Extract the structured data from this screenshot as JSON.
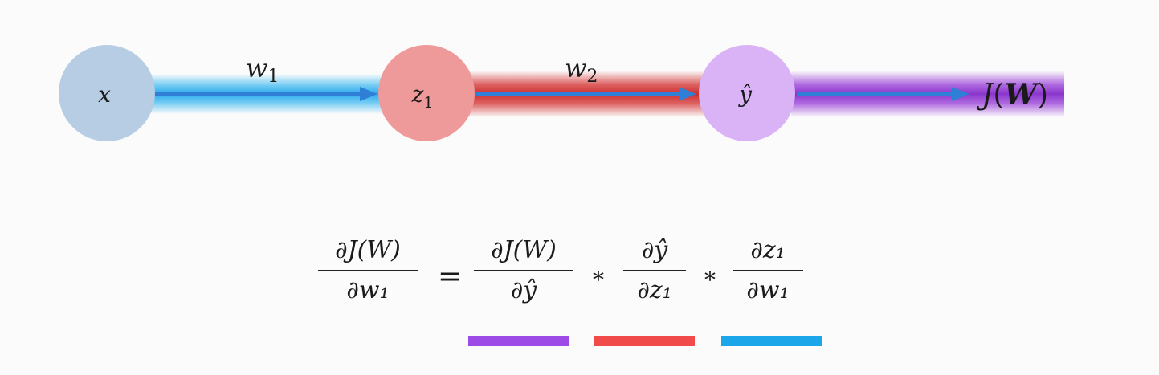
{
  "nodes": {
    "x": {
      "label": "x"
    },
    "z1": {
      "label": "z",
      "sub": "1"
    },
    "yhat": {
      "label": "ŷ"
    }
  },
  "output": {
    "label_prefix": "J",
    "label_arg": "W"
  },
  "edges": {
    "w1": {
      "label": "w",
      "sub": "1"
    },
    "w2": {
      "label": "w",
      "sub": "2"
    }
  },
  "equation": {
    "lhs": {
      "num": "∂J(W)",
      "den": "∂w₁"
    },
    "equals": "=",
    "term1": {
      "num": "∂J(W)",
      "den": "∂ŷ"
    },
    "times1": "*",
    "term2": {
      "num": "∂ŷ",
      "den": "∂z₁"
    },
    "times2": "*",
    "term3": {
      "num": "∂z₁",
      "den": "∂w₁"
    }
  },
  "colors": {
    "x_node": "#b6cde3",
    "z1_node": "#ee9a9a",
    "yhat_node": "#d9b3f5",
    "blue_band": "#3db8f0",
    "red_band": "#d63a3a",
    "purple_band": "#9b44d8",
    "arrow": "#2f7fd6",
    "underline_purple": "#9c4be6",
    "underline_red": "#f04a4a",
    "underline_blue": "#1aa6e8"
  }
}
